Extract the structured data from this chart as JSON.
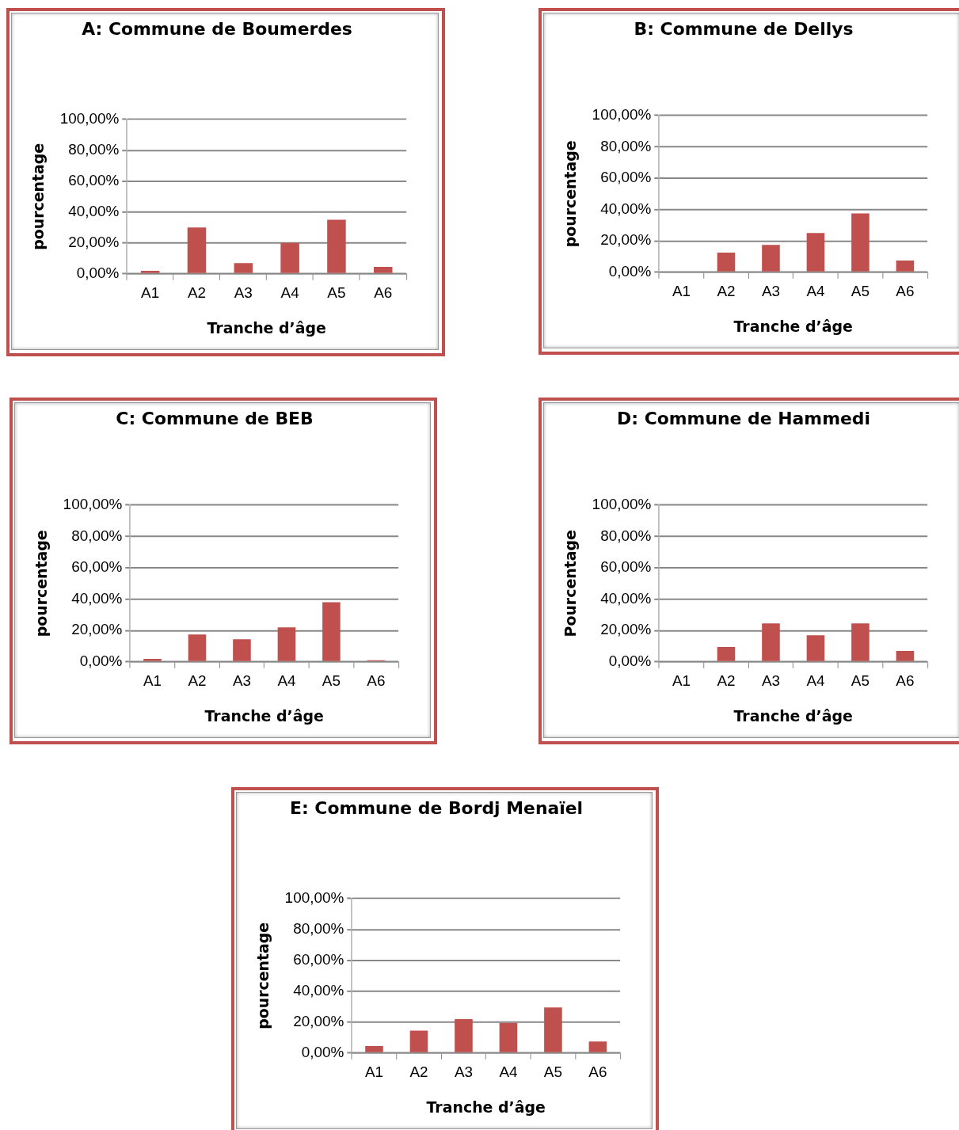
{
  "chart_data": [
    {
      "type": "bar",
      "title": "A: Commune de Boumerdes",
      "xlabel": "Tranche d’âge",
      "ylabel": "pourcentage",
      "categories": [
        "A1",
        "A2",
        "A3",
        "A4",
        "A5",
        "A6"
      ],
      "values": [
        2,
        30,
        7,
        20,
        35,
        4.5
      ],
      "color": "#c0504d",
      "ylim": [
        0,
        100
      ],
      "yticks": [
        {
          "value": 0,
          "label": "0,00%"
        },
        {
          "value": 20,
          "label": "20,00%"
        },
        {
          "value": 40,
          "label": "40,00%"
        },
        {
          "value": 60,
          "label": "60,00%"
        },
        {
          "value": 80,
          "label": "80,00%"
        },
        {
          "value": 100,
          "label": "100,00%"
        }
      ],
      "grid": "y",
      "legend": false
    },
    {
      "type": "bar",
      "title": "B: Commune de Dellys",
      "xlabel": "Tranche d’âge",
      "ylabel": "pourcentage",
      "categories": [
        "A1",
        "A2",
        "A3",
        "A4",
        "A5",
        "A6"
      ],
      "values": [
        0,
        12.5,
        17.5,
        25,
        37.5,
        7.5
      ],
      "color": "#c0504d",
      "ylim": [
        0,
        100
      ],
      "yticks": [
        {
          "value": 0,
          "label": "0,00%"
        },
        {
          "value": 20,
          "label": "20,00%"
        },
        {
          "value": 40,
          "label": "40,00%"
        },
        {
          "value": 60,
          "label": "60,00%"
        },
        {
          "value": 80,
          "label": "80,00%"
        },
        {
          "value": 100,
          "label": "100,00%"
        }
      ],
      "grid": "y",
      "legend": false
    },
    {
      "type": "bar",
      "title": "C: Commune de BEB",
      "xlabel": "Tranche d’âge",
      "ylabel": "pourcentage",
      "categories": [
        "A1",
        "A2",
        "A3",
        "A4",
        "A5",
        "A6"
      ],
      "values": [
        2,
        17.5,
        14.5,
        22,
        38,
        1
      ],
      "color": "#c0504d",
      "ylim": [
        0,
        100
      ],
      "yticks": [
        {
          "value": 0,
          "label": "0,00%"
        },
        {
          "value": 20,
          "label": "20,00%"
        },
        {
          "value": 40,
          "label": "40,00%"
        },
        {
          "value": 60,
          "label": "60,00%"
        },
        {
          "value": 80,
          "label": "80,00%"
        },
        {
          "value": 100,
          "label": "100,00%"
        }
      ],
      "grid": "y",
      "legend": false
    },
    {
      "type": "bar",
      "title": "D: Commune de Hammedi",
      "xlabel": "Tranche d’âge",
      "ylabel": "Pourcentage",
      "categories": [
        "A1",
        "A2",
        "A3",
        "A4",
        "A5",
        "A6"
      ],
      "values": [
        0,
        9.5,
        24.5,
        17,
        24.5,
        7
      ],
      "color": "#c0504d",
      "ylim": [
        0,
        100
      ],
      "yticks": [
        {
          "value": 0,
          "label": "0,00%"
        },
        {
          "value": 20,
          "label": "20,00%"
        },
        {
          "value": 40,
          "label": "40,00%"
        },
        {
          "value": 60,
          "label": "60,00%"
        },
        {
          "value": 80,
          "label": "80,00%"
        },
        {
          "value": 100,
          "label": "100,00%"
        }
      ],
      "grid": "y",
      "legend": false
    },
    {
      "type": "bar",
      "title": "E: Commune de Bordj Menaïel",
      "xlabel": "Tranche d’âge",
      "ylabel": "pourcentage",
      "categories": [
        "A1",
        "A2",
        "A3",
        "A4",
        "A5",
        "A6"
      ],
      "values": [
        4.5,
        14.5,
        22,
        19.5,
        29.5,
        7.5
      ],
      "color": "#c0504d",
      "ylim": [
        0,
        100
      ],
      "yticks": [
        {
          "value": 0,
          "label": "0,00%"
        },
        {
          "value": 20,
          "label": "20,00%"
        },
        {
          "value": 40,
          "label": "40,00%"
        },
        {
          "value": 60,
          "label": "60,00%"
        },
        {
          "value": 80,
          "label": "80,00%"
        },
        {
          "value": 100,
          "label": "100,00%"
        }
      ],
      "grid": "y",
      "legend": false
    }
  ]
}
